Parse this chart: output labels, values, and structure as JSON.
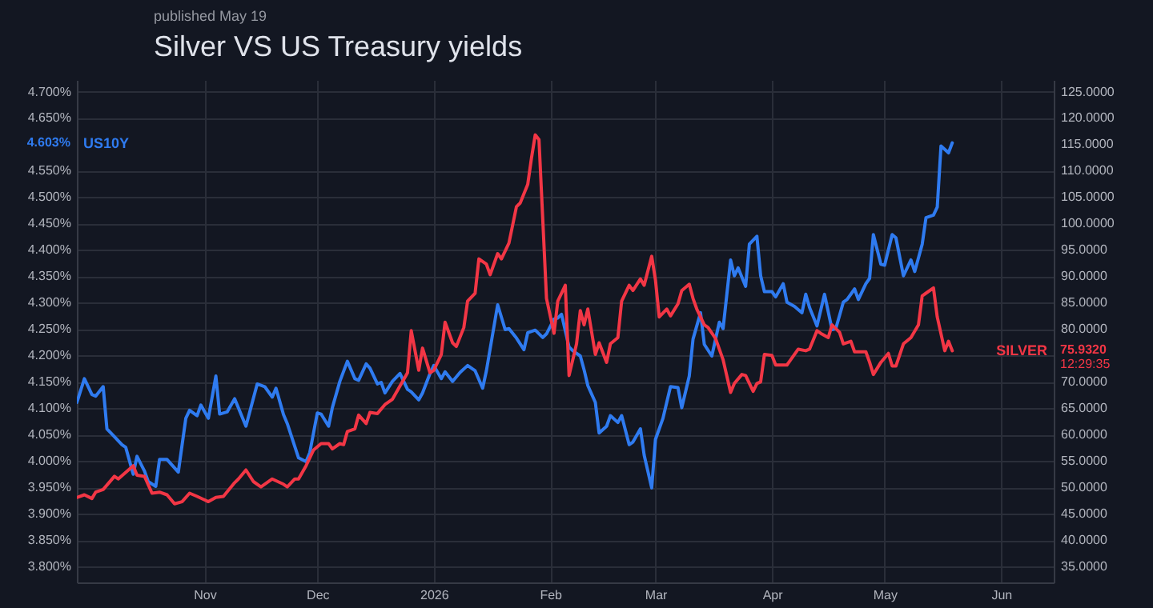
{
  "chart_data": {
    "type": "line",
    "title": "Silver VS US Treasury yields",
    "subtitle": "published May 19",
    "grid": true,
    "xlim": [
      "2025-09-28",
      "2026-06-15"
    ],
    "xticks": [
      {
        "value": "2025-11-01",
        "label": "Nov"
      },
      {
        "value": "2025-12-01",
        "label": "Dec"
      },
      {
        "value": "2026-01-01",
        "label": "2026"
      },
      {
        "value": "2026-02-01",
        "label": "Feb"
      },
      {
        "value": "2026-03-01",
        "label": "Mar"
      },
      {
        "value": "2026-04-01",
        "label": "Apr"
      },
      {
        "value": "2026-05-01",
        "label": "May"
      },
      {
        "value": "2026-06-01",
        "label": "Jun"
      }
    ],
    "ylim": [
      3.77,
      4.722
    ],
    "yticks": [
      {
        "value": 3.8,
        "label": "3.800%"
      },
      {
        "value": 3.85,
        "label": "3.850%"
      },
      {
        "value": 3.9,
        "label": "3.900%"
      },
      {
        "value": 3.95,
        "label": "3.950%"
      },
      {
        "value": 4.0,
        "label": "4.000%"
      },
      {
        "value": 4.05,
        "label": "4.050%"
      },
      {
        "value": 4.1,
        "label": "4.100%"
      },
      {
        "value": 4.15,
        "label": "4.150%"
      },
      {
        "value": 4.2,
        "label": "4.200%"
      },
      {
        "value": 4.25,
        "label": "4.250%"
      },
      {
        "value": 4.3,
        "label": "4.300%"
      },
      {
        "value": 4.35,
        "label": "4.350%"
      },
      {
        "value": 4.4,
        "label": "4.400%"
      },
      {
        "value": 4.45,
        "label": "4.450%"
      },
      {
        "value": 4.5,
        "label": "4.500%"
      },
      {
        "value": 4.55,
        "label": "4.550%"
      },
      {
        "value": 4.65,
        "label": "4.650%"
      },
      {
        "value": 4.7,
        "label": "4.700%"
      }
    ],
    "y2lim": [
      32,
      127.2
    ],
    "y2ticks": [
      {
        "value": 35,
        "label": "35.0000"
      },
      {
        "value": 40,
        "label": "40.0000"
      },
      {
        "value": 45,
        "label": "45.0000"
      },
      {
        "value": 50,
        "label": "50.0000"
      },
      {
        "value": 55,
        "label": "55.0000"
      },
      {
        "value": 60,
        "label": "60.0000"
      },
      {
        "value": 65,
        "label": "65.0000"
      },
      {
        "value": 70,
        "label": "70.0000"
      },
      {
        "value": 80,
        "label": "80.0000"
      },
      {
        "value": 85,
        "label": "85.0000"
      },
      {
        "value": 90,
        "label": "90.0000"
      },
      {
        "value": 95,
        "label": "95.0000"
      },
      {
        "value": 100,
        "label": "100.0000"
      },
      {
        "value": 105,
        "label": "105.0000"
      },
      {
        "value": 110,
        "label": "110.0000"
      },
      {
        "value": 115,
        "label": "115.0000"
      },
      {
        "value": 120,
        "label": "120.0000"
      },
      {
        "value": 125,
        "label": "125.0000"
      }
    ],
    "annotations": [
      "4.603%",
      "75.9320",
      "12:29:35"
    ],
    "series": [
      {
        "name": "US10Y",
        "color": "#2f7bf0",
        "axis": "y",
        "x": [
          "2025-09-28",
          "2025-09-30",
          "2025-10-02",
          "2025-10-03",
          "2025-10-05",
          "2025-10-06",
          "2025-10-08",
          "2025-10-10",
          "2025-10-11",
          "2025-10-13",
          "2025-10-14",
          "2025-10-16",
          "2025-10-17",
          "2025-10-19",
          "2025-10-20",
          "2025-10-22",
          "2025-10-25",
          "2025-10-27",
          "2025-10-28",
          "2025-10-30",
          "2025-10-31",
          "2025-11-02",
          "2025-11-04",
          "2025-11-05",
          "2025-11-07",
          "2025-11-09",
          "2025-11-12",
          "2025-11-15",
          "2025-11-17",
          "2025-11-19",
          "2025-11-20",
          "2025-11-22",
          "2025-11-23",
          "2025-11-26",
          "2025-11-28",
          "2025-11-29",
          "2025-12-01",
          "2025-12-02",
          "2025-12-04",
          "2025-12-05",
          "2025-12-07",
          "2025-12-09",
          "2025-12-11",
          "2025-12-12",
          "2025-12-14",
          "2025-12-15",
          "2025-12-17",
          "2025-12-18",
          "2025-12-19",
          "2025-12-21",
          "2025-12-23",
          "2025-12-25",
          "2025-12-26",
          "2025-12-28",
          "2025-12-29",
          "2025-12-31",
          "2026-01-01",
          "2026-01-03",
          "2026-01-04",
          "2026-01-06",
          "2026-01-08",
          "2026-01-10",
          "2026-01-12",
          "2026-01-14",
          "2026-01-15",
          "2026-01-18",
          "2026-01-20",
          "2026-01-21",
          "2026-01-23",
          "2026-01-25",
          "2026-01-26",
          "2026-01-28",
          "2026-01-30",
          "2026-01-31",
          "2026-02-02",
          "2026-02-03",
          "2026-02-04",
          "2026-02-06",
          "2026-02-07",
          "2026-02-09",
          "2026-02-10",
          "2026-02-11",
          "2026-02-13",
          "2026-02-14",
          "2026-02-16",
          "2026-02-17",
          "2026-02-19",
          "2026-02-20",
          "2026-02-22",
          "2026-02-23",
          "2026-02-25",
          "2026-02-26",
          "2026-02-28",
          "2026-03-01",
          "2026-03-03",
          "2026-03-05",
          "2026-03-07",
          "2026-03-08",
          "2026-03-10",
          "2026-03-11",
          "2026-03-13",
          "2026-03-14",
          "2026-03-16",
          "2026-03-18",
          "2026-03-19",
          "2026-03-21",
          "2026-03-22",
          "2026-03-23",
          "2026-03-25",
          "2026-03-26",
          "2026-03-28",
          "2026-03-29",
          "2026-03-30",
          "2026-04-01",
          "2026-04-02",
          "2026-04-04",
          "2026-04-05",
          "2026-04-07",
          "2026-04-09",
          "2026-04-10",
          "2026-04-11",
          "2026-04-13",
          "2026-04-15",
          "2026-04-17",
          "2026-04-18",
          "2026-04-20",
          "2026-04-21",
          "2026-04-23",
          "2026-04-24",
          "2026-04-26",
          "2026-04-27",
          "2026-04-28",
          "2026-04-30",
          "2026-05-01",
          "2026-05-03",
          "2026-05-04",
          "2026-05-06",
          "2026-05-08",
          "2026-05-09",
          "2026-05-11",
          "2026-05-12",
          "2026-05-14",
          "2026-05-15",
          "2026-05-16",
          "2026-05-18",
          "2026-05-19"
        ],
        "values": [
          4.111,
          4.156,
          4.126,
          4.123,
          4.141,
          4.061,
          4.046,
          4.031,
          4.026,
          3.975,
          4.009,
          3.981,
          3.961,
          3.952,
          4.003,
          4.003,
          3.979,
          4.081,
          4.096,
          4.086,
          4.106,
          4.081,
          4.161,
          4.089,
          4.093,
          4.118,
          4.066,
          4.146,
          4.141,
          4.121,
          4.138,
          4.088,
          4.071,
          4.006,
          3.999,
          4.016,
          4.091,
          4.089,
          4.066,
          4.101,
          4.151,
          4.189,
          4.156,
          4.153,
          4.184,
          4.176,
          4.146,
          4.149,
          4.129,
          4.151,
          4.166,
          4.136,
          4.131,
          4.116,
          4.129,
          4.166,
          4.181,
          4.156,
          4.169,
          4.151,
          4.168,
          4.181,
          4.171,
          4.138,
          4.171,
          4.296,
          4.249,
          4.251,
          4.233,
          4.211,
          4.243,
          4.248,
          4.234,
          4.241,
          4.269,
          4.271,
          4.278,
          4.216,
          4.209,
          4.199,
          4.173,
          4.143,
          4.111,
          4.053,
          4.066,
          4.086,
          4.073,
          4.086,
          4.031,
          4.036,
          4.061,
          4.011,
          3.949,
          4.041,
          4.081,
          4.141,
          4.139,
          4.101,
          4.161,
          4.231,
          4.281,
          4.221,
          4.199,
          4.263,
          4.251,
          4.381,
          4.351,
          4.366,
          4.331,
          4.411,
          4.426,
          4.351,
          4.321,
          4.321,
          4.311,
          4.336,
          4.301,
          4.293,
          4.281,
          4.316,
          4.291,
          4.256,
          4.316,
          4.249,
          4.251,
          4.301,
          4.306,
          4.326,
          4.306,
          4.336,
          4.346,
          4.429,
          4.373,
          4.371,
          4.429,
          4.423,
          4.351,
          4.381,
          4.359,
          4.411,
          4.461,
          4.466,
          4.481,
          4.597,
          4.584,
          4.603
        ]
      },
      {
        "name": "SILVER",
        "color": "#f23645",
        "axis": "y2",
        "x": [
          "2025-09-28",
          "2025-09-30",
          "2025-10-02",
          "2025-10-03",
          "2025-10-05",
          "2025-10-08",
          "2025-10-09",
          "2025-10-13",
          "2025-10-14",
          "2025-10-16",
          "2025-10-18",
          "2025-10-20",
          "2025-10-22",
          "2025-10-24",
          "2025-10-26",
          "2025-10-28",
          "2025-10-30",
          "2025-11-02",
          "2025-11-04",
          "2025-11-06",
          "2025-11-09",
          "2025-11-10",
          "2025-11-12",
          "2025-11-14",
          "2025-11-16",
          "2025-11-19",
          "2025-11-22",
          "2025-11-23",
          "2025-11-25",
          "2025-11-26",
          "2025-11-28",
          "2025-11-30",
          "2025-12-02",
          "2025-12-04",
          "2025-12-05",
          "2025-12-07",
          "2025-12-08",
          "2025-12-09",
          "2025-12-11",
          "2025-12-12",
          "2025-12-14",
          "2025-12-15",
          "2025-12-17",
          "2025-12-19",
          "2025-12-21",
          "2025-12-23",
          "2025-12-25",
          "2025-12-26",
          "2025-12-28",
          "2025-12-29",
          "2025-12-31",
          "2026-01-01",
          "2026-01-03",
          "2026-01-04",
          "2026-01-06",
          "2026-01-07",
          "2026-01-09",
          "2026-01-10",
          "2026-01-12",
          "2026-01-13",
          "2026-01-15",
          "2026-01-16",
          "2026-01-18",
          "2026-01-19",
          "2026-01-21",
          "2026-01-23",
          "2026-01-24",
          "2026-01-26",
          "2026-01-27",
          "2026-01-28",
          "2026-01-29",
          "2026-01-31",
          "2026-02-02",
          "2026-02-03",
          "2026-02-05",
          "2026-02-06",
          "2026-02-08",
          "2026-02-09",
          "2026-02-10",
          "2026-02-11",
          "2026-02-13",
          "2026-02-14",
          "2026-02-16",
          "2026-02-17",
          "2026-02-19",
          "2026-02-20",
          "2026-02-22",
          "2026-02-23",
          "2026-02-25",
          "2026-02-26",
          "2026-02-28",
          "2026-03-01",
          "2026-03-02",
          "2026-03-04",
          "2026-03-05",
          "2026-03-07",
          "2026-03-08",
          "2026-03-10",
          "2026-03-11",
          "2026-03-12",
          "2026-03-14",
          "2026-03-15",
          "2026-03-17",
          "2026-03-19",
          "2026-03-21",
          "2026-03-22",
          "2026-03-24",
          "2026-03-25",
          "2026-03-27",
          "2026-03-28",
          "2026-03-29",
          "2026-03-30",
          "2026-04-01",
          "2026-04-02",
          "2026-04-05",
          "2026-04-06",
          "2026-04-08",
          "2026-04-10",
          "2026-04-11",
          "2026-04-13",
          "2026-04-14",
          "2026-04-16",
          "2026-04-17",
          "2026-04-19",
          "2026-04-20",
          "2026-04-22",
          "2026-04-23",
          "2026-04-26",
          "2026-04-27",
          "2026-04-28",
          "2026-04-30",
          "2026-05-02",
          "2026-05-03",
          "2026-05-04",
          "2026-05-06",
          "2026-05-08",
          "2026-05-10",
          "2026-05-11",
          "2026-05-12",
          "2026-05-14",
          "2026-05-15",
          "2026-05-17",
          "2026-05-18",
          "2026-05-19"
        ],
        "values": [
          48.1,
          48.6,
          47.9,
          49.1,
          49.6,
          52.1,
          51.6,
          54.1,
          52.3,
          52.1,
          48.9,
          49.1,
          48.6,
          46.9,
          47.3,
          48.9,
          48.3,
          47.3,
          48.1,
          48.3,
          50.9,
          51.6,
          53.3,
          51.1,
          50.1,
          51.6,
          50.6,
          50.1,
          51.6,
          51.6,
          54.1,
          57.1,
          58.3,
          58.3,
          57.3,
          58.3,
          58.1,
          60.6,
          61.1,
          63.7,
          62.1,
          64.2,
          64.0,
          65.7,
          66.7,
          69.2,
          71.7,
          79.7,
          72.2,
          76.4,
          71.7,
          72.2,
          75.2,
          81.3,
          77.4,
          76.7,
          80.3,
          85.3,
          86.8,
          93.3,
          92.3,
          90.3,
          94.3,
          93.3,
          96.3,
          103.2,
          103.9,
          107.4,
          112.4,
          116.8,
          115.9,
          85.8,
          79.2,
          85.3,
          88.3,
          71.2,
          77.2,
          83.5,
          80.8,
          83.8,
          75.2,
          77.4,
          73.7,
          77.2,
          78.4,
          85.3,
          88.3,
          87.3,
          89.5,
          88.3,
          93.8,
          89.3,
          82.3,
          83.8,
          82.5,
          84.8,
          87.3,
          88.5,
          85.8,
          83.8,
          80.8,
          80.3,
          78.2,
          74.2,
          68.0,
          69.7,
          71.4,
          71.2,
          68.2,
          69.7,
          70.0,
          75.2,
          75.0,
          73.2,
          73.2,
          74.2,
          76.2,
          75.9,
          76.2,
          79.7,
          79.2,
          78.4,
          80.8,
          79.4,
          77.2,
          77.7,
          75.7,
          75.7,
          73.7,
          71.4,
          73.7,
          75.4,
          73.0,
          73.0,
          77.2,
          78.4,
          80.8,
          86.3,
          86.8,
          87.8,
          82.3,
          75.9,
          77.7,
          75.9
        ]
      }
    ]
  }
}
